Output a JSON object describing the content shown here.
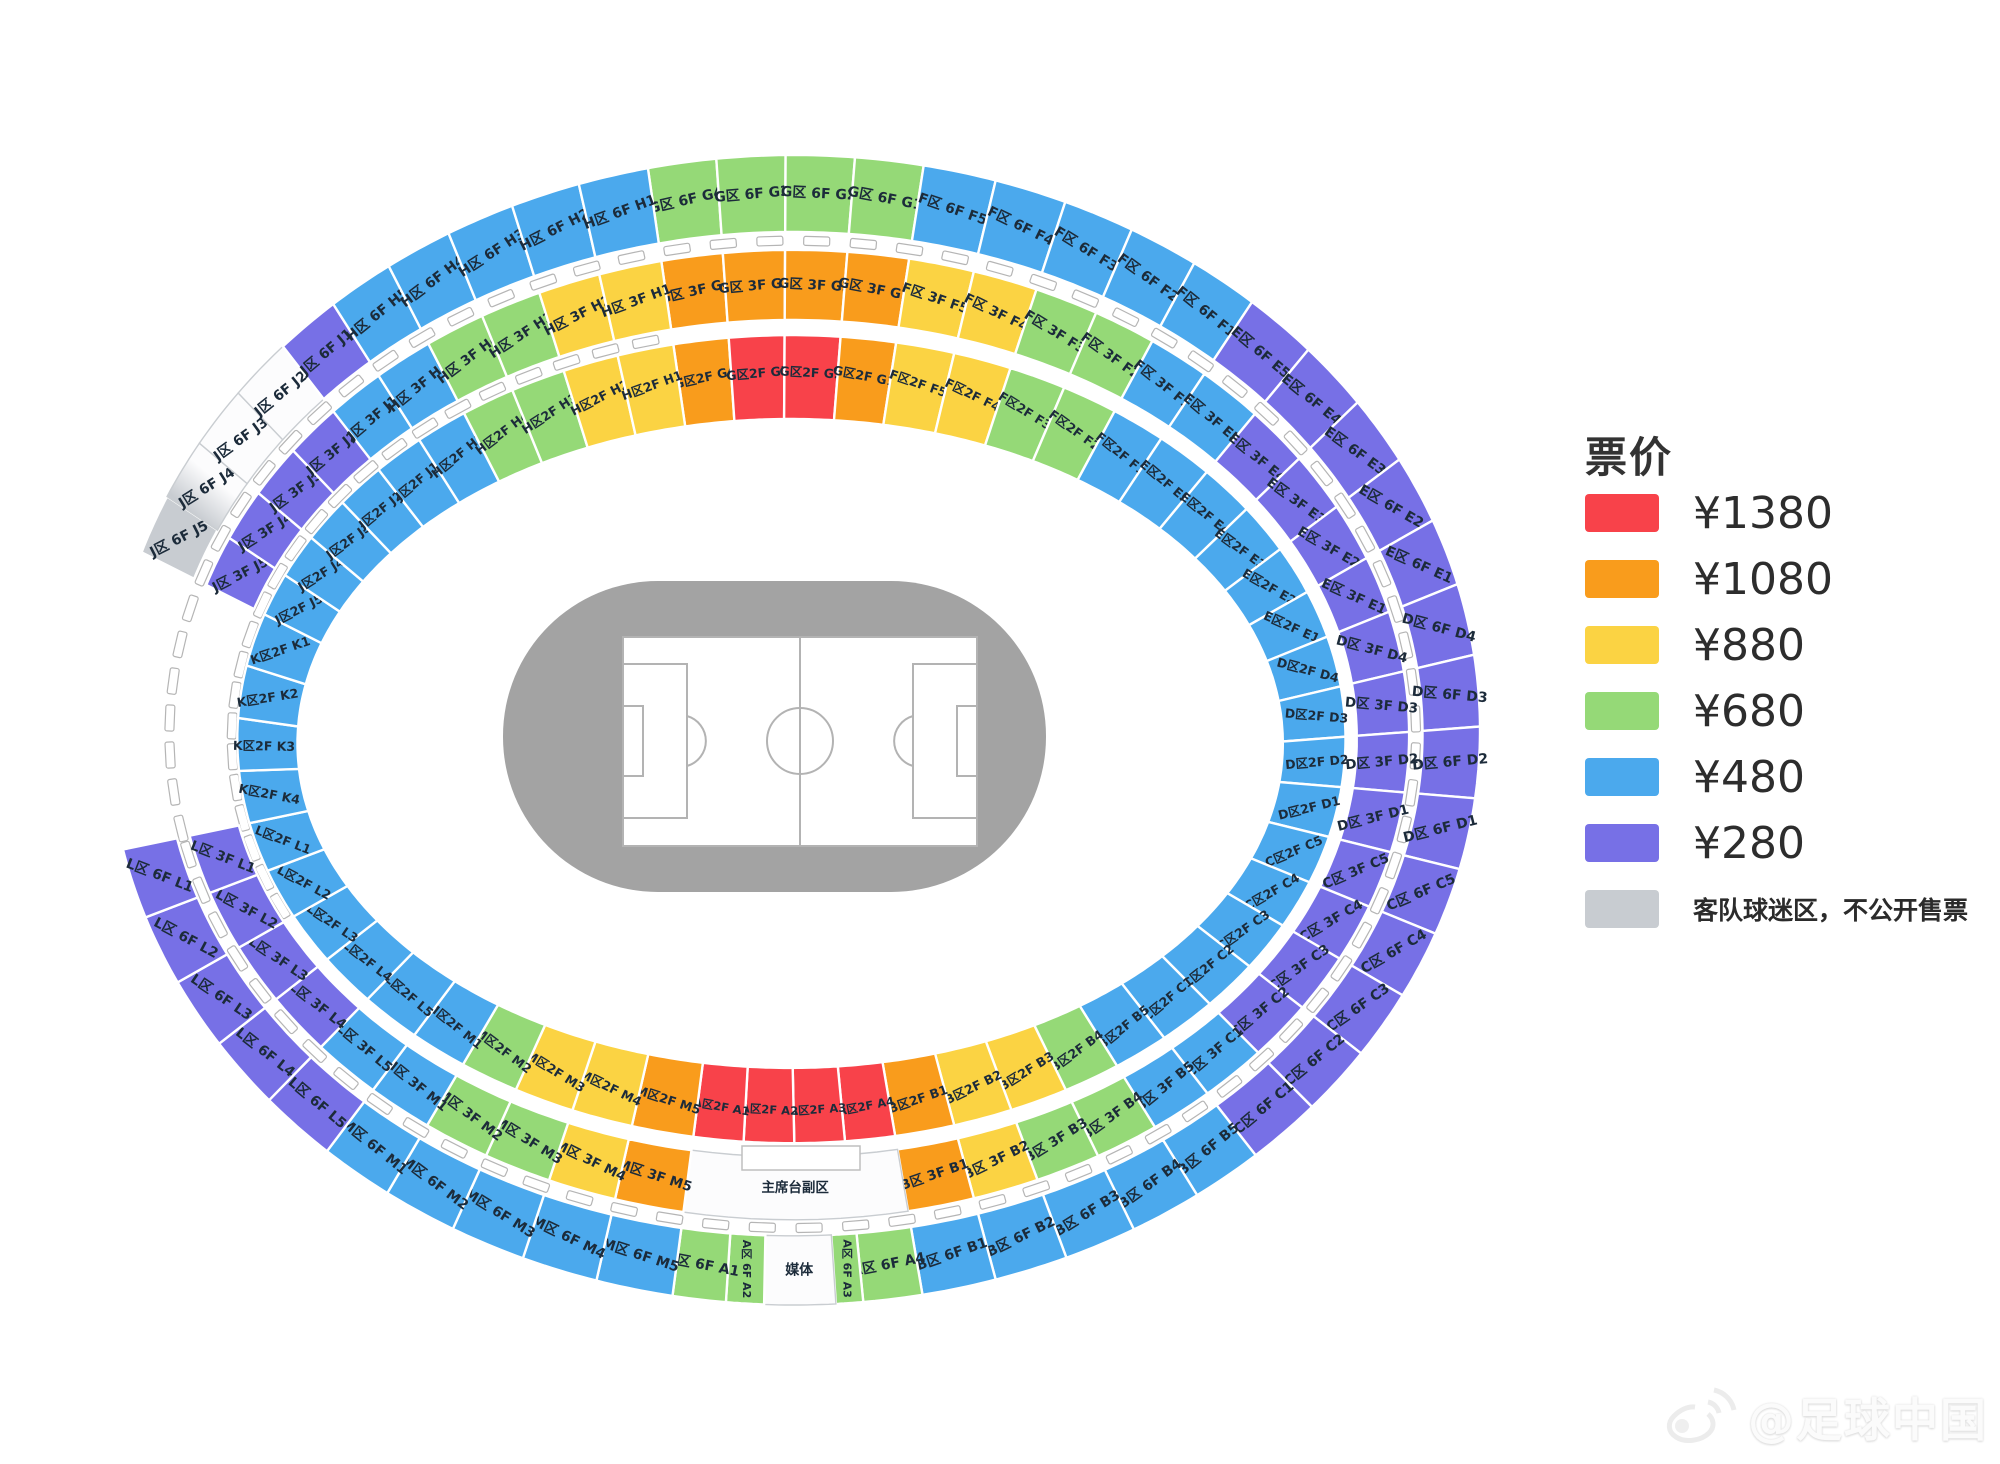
{
  "legend": {
    "title": "票价",
    "items": [
      {
        "label": "¥1380",
        "color": "#F8424A",
        "small": false
      },
      {
        "label": "¥1080",
        "color": "#F99C1C",
        "small": false
      },
      {
        "label": "¥880",
        "color": "#FBD343",
        "small": false
      },
      {
        "label": "¥680",
        "color": "#95D977",
        "small": false
      },
      {
        "label": "¥480",
        "color": "#4BA9ED",
        "small": false
      },
      {
        "label": "¥280",
        "color": "#7770E6",
        "small": false
      },
      {
        "label": "客队球迷区，不公开售票",
        "color": "#C8CCD1",
        "small": true
      }
    ]
  },
  "watermark": {
    "icon": "weibo-icon",
    "text": "@足球中国"
  },
  "tiers": {
    "red": {
      "color": "#F8424A",
      "price": "¥1380"
    },
    "orange": {
      "color": "#F99C1C",
      "price": "¥1080"
    },
    "yellow": {
      "color": "#FBD343",
      "price": "¥880"
    },
    "green": {
      "color": "#95D977",
      "price": "¥680"
    },
    "blue": {
      "color": "#4BA9ED",
      "price": "¥480"
    },
    "purple": {
      "color": "#7770E6",
      "price": "¥280"
    },
    "gray": {
      "color": "#C8CCD1",
      "note": "客队球迷区，不公开售票"
    },
    "white": {
      "color": "#FCFCFD",
      "note": ""
    },
    "white_gray": {
      "color": "#FCFCFD",
      "note": "客队球迷区，不公开售票"
    }
  },
  "special_labels": {
    "rostrum": "主席台副区",
    "media": "媒体"
  },
  "stadium": {
    "zones": [
      {
        "name": "G",
        "start": -12.3,
        "end": 10.9
      },
      {
        "name": "F",
        "start": 10.9,
        "end": 41.9
      },
      {
        "name": "E",
        "start": 41.9,
        "end": 75.3
      },
      {
        "name": "D",
        "start": 75.3,
        "end": 104.0
      },
      {
        "name": "C",
        "start": 104.0,
        "end": 137.7
      },
      {
        "name": "B",
        "start": 137.7,
        "end": 169.2
      },
      {
        "name": "A",
        "start": 169.2,
        "end": 190.2
      },
      {
        "name": "M",
        "start": 190.2,
        "end": 222.9
      },
      {
        "name": "L",
        "start": 222.9,
        "end": 258.0
      },
      {
        "name": "K",
        "start": 258.0,
        "end": 288.0
      },
      {
        "name": "J",
        "start": 288.0,
        "end": 317.8
      },
      {
        "name": "H",
        "start": 317.8,
        "end": 347.7
      }
    ],
    "rings": [
      {
        "name": "6F",
        "zones": {
          "G": [
            [
              "G区 6F G4",
              "green"
            ],
            [
              "G区 6F G3",
              "green"
            ],
            [
              "G区 6F G2",
              "green"
            ],
            [
              "G区 6F G1",
              "green"
            ]
          ],
          "F": [
            [
              "F区 6F F5",
              "blue"
            ],
            [
              "F区 6F F4",
              "blue"
            ],
            [
              "F区 6F F3",
              "blue"
            ],
            [
              "F区 6F F2",
              "blue"
            ],
            [
              "F区 6F F1",
              "blue"
            ]
          ],
          "E": [
            [
              "E区 6F E5",
              "purple"
            ],
            [
              "E区 6F E4",
              "purple"
            ],
            [
              "E区 6F E3",
              "purple"
            ],
            [
              "E区 6F E2",
              "purple"
            ],
            [
              "E区 6F E1",
              "purple"
            ]
          ],
          "D": [
            [
              "D区 6F D4",
              "purple"
            ],
            [
              "D区 6F D3",
              "purple"
            ],
            [
              "D区 6F D2",
              "purple"
            ],
            [
              "D区 6F D1",
              "purple"
            ]
          ],
          "C": [
            [
              "C区 6F C5",
              "purple"
            ],
            [
              "C区 6F C4",
              "purple"
            ],
            [
              "C区 6F C3",
              "purple"
            ],
            [
              "C区 6F C2",
              "purple"
            ],
            [
              "C区 6F C1",
              "purple"
            ]
          ],
          "B": [
            [
              "B区 6F B5",
              "blue"
            ],
            [
              "B区 6F B4",
              "blue"
            ],
            [
              "B区 6F B3",
              "blue"
            ],
            [
              "B区 6F B2",
              "blue"
            ],
            [
              "B区 6F B1",
              "blue"
            ]
          ],
          "A": [
            [
              "A区 6F A4",
              "green",
              {
                "w": 5
              }
            ],
            [
              "A区 6F A3",
              "green",
              {
                "w": 2.3,
                "rot": 90,
                "fs": 11
              }
            ],
            [
              "媒体",
              "white",
              {
                "w": 6,
                "rot": 0
              }
            ],
            [
              "A区 6F A2",
              "green",
              {
                "w": 3.2,
                "rot": 90,
                "fs": 11
              }
            ],
            [
              "A区 6F A1",
              "green",
              {
                "w": 4.5
              }
            ]
          ],
          "M": [
            [
              "M区 6F M5",
              "blue"
            ],
            [
              "M区 6F M4",
              "blue"
            ],
            [
              "M区 6F M3",
              "blue"
            ],
            [
              "M区 6F M2",
              "blue"
            ],
            [
              "M区 6F M1",
              "blue"
            ]
          ],
          "L": [
            [
              "L区 6F L5",
              "purple"
            ],
            [
              "L区 6F L4",
              "purple"
            ],
            [
              "L区 6F L3",
              "purple"
            ],
            [
              "L区 6F L2",
              "purple"
            ],
            [
              "L区 6F L1",
              "purple"
            ]
          ],
          "J": [
            [
              "J区 6F J5",
              "gray"
            ],
            [
              "J区 6F J4",
              "white_gray"
            ],
            [
              "J区 6F J3",
              "white"
            ],
            [
              "J区 6F J2",
              "white"
            ],
            [
              "J区 6F J1",
              "purple"
            ]
          ],
          "H": [
            [
              "H区 6F H5",
              "blue"
            ],
            [
              "H区 6F H4",
              "blue"
            ],
            [
              "H区 6F H3",
              "blue"
            ],
            [
              "H区 6F H2",
              "blue"
            ],
            [
              "H区 6F H1",
              "blue"
            ]
          ]
        }
      },
      {
        "name": "3F",
        "zones": {
          "G": [
            [
              "G区 3F G4",
              "orange"
            ],
            [
              "G区 3F G3",
              "orange"
            ],
            [
              "G区 3F G2",
              "orange"
            ],
            [
              "G区 3F G1",
              "orange"
            ]
          ],
          "F": [
            [
              "F区 3F F5",
              "yellow"
            ],
            [
              "F区 3F F4",
              "yellow"
            ],
            [
              "F区 3F F3",
              "green"
            ],
            [
              "F区 3F F2",
              "green"
            ],
            [
              "F区 3F F1",
              "blue"
            ]
          ],
          "E": [
            [
              "E区 3F E5",
              "blue"
            ],
            [
              "E区 3F E4",
              "purple"
            ],
            [
              "E区 3F E3",
              "purple"
            ],
            [
              "E区 3F E2",
              "purple"
            ],
            [
              "E区 3F E1",
              "purple"
            ]
          ],
          "D": [
            [
              "D区 3F D4",
              "purple"
            ],
            [
              "D区 3F D3",
              "purple"
            ],
            [
              "D区 3F D2",
              "purple"
            ],
            [
              "D区 3F D1",
              "purple"
            ]
          ],
          "C": [
            [
              "C区 3F C5",
              "purple"
            ],
            [
              "C区 3F C4",
              "purple"
            ],
            [
              "C区 3F C3",
              "purple"
            ],
            [
              "C区 3F C2",
              "purple"
            ],
            [
              "C区 3F C1",
              "blue"
            ]
          ],
          "B": [
            [
              "B区 3F B5",
              "blue"
            ],
            [
              "B区 3F B4",
              "green"
            ],
            [
              "B区 3F B3",
              "green"
            ],
            [
              "B区 3F B2",
              "yellow"
            ],
            [
              "B区 3F B1",
              "orange"
            ]
          ],
          "A": [
            [
              "主席台副区",
              "white",
              {
                "rot": 0,
                "special": "rostrum"
              }
            ]
          ],
          "M": [
            [
              "M区 3F M5",
              "orange"
            ],
            [
              "M区 3F M4",
              "yellow"
            ],
            [
              "M区 3F M3",
              "green"
            ],
            [
              "M区 3F M2",
              "green"
            ],
            [
              "M区 3F M1",
              "blue"
            ]
          ],
          "L": [
            [
              "L区 3F L5",
              "blue"
            ],
            [
              "L区 3F L4",
              "purple"
            ],
            [
              "L区 3F L3",
              "purple"
            ],
            [
              "L区 3F L2",
              "purple"
            ],
            [
              "L区 3F L1",
              "purple"
            ]
          ],
          "J": [
            [
              "J区 3F J5",
              "purple"
            ],
            [
              "J区 3F J4",
              "purple"
            ],
            [
              "J区 3F J3",
              "purple"
            ],
            [
              "J区 3F J2",
              "purple"
            ],
            [
              "J区 3F J1",
              "blue"
            ]
          ],
          "H": [
            [
              "H区 3F H5",
              "blue"
            ],
            [
              "H区 3F H4",
              "green"
            ],
            [
              "H区 3F H3",
              "green"
            ],
            [
              "H区 3F H2",
              "yellow"
            ],
            [
              "H区 3F H1",
              "yellow"
            ]
          ]
        }
      },
      {
        "name": "2F",
        "zones": {
          "G": [
            [
              "G区2F G4",
              "orange"
            ],
            [
              "G区2F G3",
              "red"
            ],
            [
              "G区2F G2",
              "red"
            ],
            [
              "G区2F G1",
              "orange"
            ]
          ],
          "F": [
            [
              "F区2F F5",
              "yellow"
            ],
            [
              "F区2F F4",
              "yellow"
            ],
            [
              "F区2F F3",
              "green"
            ],
            [
              "F区2F F2",
              "green"
            ],
            [
              "F区2F F1",
              "blue"
            ]
          ],
          "E": [
            [
              "E区2F E5",
              "blue"
            ],
            [
              "E区2F E4",
              "blue"
            ],
            [
              "E区2F E3",
              "blue"
            ],
            [
              "E区2F E2",
              "blue"
            ],
            [
              "E区2F E1",
              "blue"
            ]
          ],
          "D": [
            [
              "D区2F D4",
              "blue"
            ],
            [
              "D区2F D3",
              "blue"
            ],
            [
              "D区2F D2",
              "blue"
            ],
            [
              "D区2F D1",
              "blue"
            ]
          ],
          "C": [
            [
              "C区2F C5",
              "blue"
            ],
            [
              "C区2F C4",
              "blue"
            ],
            [
              "C区2F C3",
              "blue"
            ],
            [
              "C区2F C2",
              "blue"
            ],
            [
              "C区2F C1",
              "blue"
            ]
          ],
          "B": [
            [
              "B区2F B5",
              "blue"
            ],
            [
              "B区2F B4",
              "green"
            ],
            [
              "B区2F B3",
              "yellow"
            ],
            [
              "B区2F B2",
              "yellow"
            ],
            [
              "B区2F B1",
              "orange"
            ]
          ],
          "A": [
            [
              "A区2F A4",
              "red",
              {
                "fs": 11.5
              }
            ],
            [
              "A区2F A3",
              "red",
              {
                "fs": 11.5
              }
            ],
            [
              "A区2F A2",
              "red",
              {
                "fs": 11.5
              }
            ],
            [
              "A区2F A1",
              "red",
              {
                "fs": 11.5
              }
            ]
          ],
          "M": [
            [
              "M区2F M5",
              "orange"
            ],
            [
              "M区2F M4",
              "yellow"
            ],
            [
              "M区2F M3",
              "yellow"
            ],
            [
              "M区2F M2",
              "green"
            ],
            [
              "M区2F M1",
              "blue"
            ]
          ],
          "L": [
            [
              "L区2F L5",
              "blue"
            ],
            [
              "L区2F L4",
              "blue"
            ],
            [
              "L区2F L3",
              "blue"
            ],
            [
              "L区2F L2",
              "blue"
            ],
            [
              "L区2F L1",
              "blue"
            ]
          ],
          "K": [
            [
              "K区2F K4",
              "blue"
            ],
            [
              "K区2F K3",
              "blue"
            ],
            [
              "K区2F K2",
              "blue"
            ],
            [
              "K区2F K1",
              "blue"
            ]
          ],
          "J": [
            [
              "J区2F J5",
              "blue"
            ],
            [
              "J区2F J4",
              "blue"
            ],
            [
              "J区2F J3",
              "blue"
            ],
            [
              "J区2F J2",
              "blue"
            ],
            [
              "J区2F J1",
              "blue"
            ]
          ],
          "H": [
            [
              "H区2F H5",
              "blue"
            ],
            [
              "H区2F H4",
              "green"
            ],
            [
              "H区2F H3",
              "green"
            ],
            [
              "H区2F H2",
              "yellow"
            ],
            [
              "H区2F H1",
              "yellow"
            ]
          ]
        }
      }
    ]
  }
}
